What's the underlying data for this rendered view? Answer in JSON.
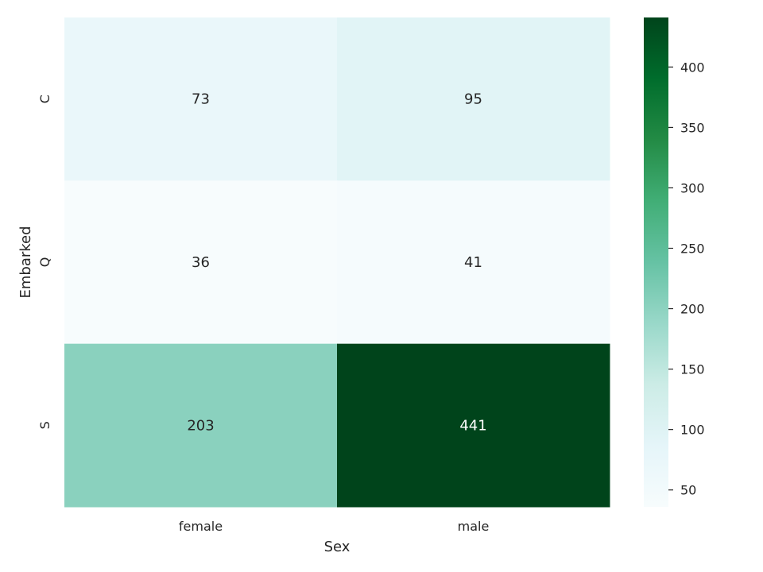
{
  "chart_data": {
    "type": "heatmap",
    "title": "",
    "xlabel": "Sex",
    "ylabel": "Embarked",
    "x_categories": [
      "female",
      "male"
    ],
    "y_categories": [
      "C",
      "Q",
      "S"
    ],
    "values": [
      [
        73,
        95
      ],
      [
        36,
        41
      ],
      [
        203,
        441
      ]
    ],
    "annotate": true,
    "colormap": "BuGn",
    "value_range": [
      36,
      441
    ],
    "colorbar": {
      "ticks": [
        50,
        100,
        150,
        200,
        250,
        300,
        350,
        400
      ]
    },
    "grid": false
  }
}
